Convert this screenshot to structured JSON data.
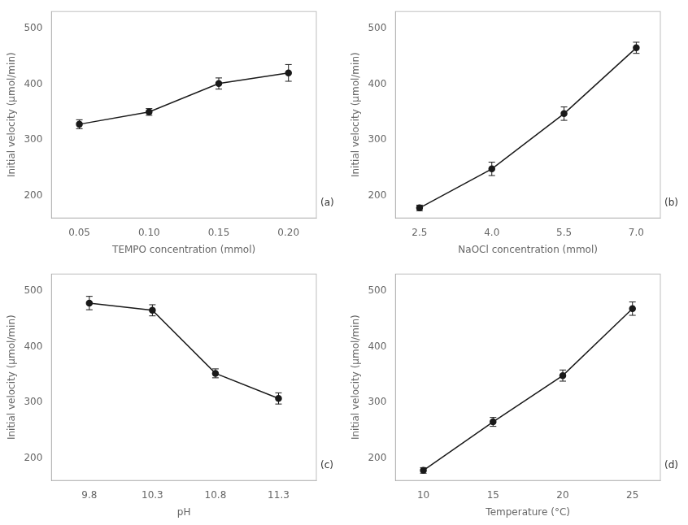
{
  "chart_data": [
    {
      "type": "line",
      "annotation": "(a)",
      "xlabel": "TEMPO concentration (mmol)",
      "ylabel": "Initial velocity (μmol/min)",
      "x": [
        0.05,
        0.1,
        0.15,
        0.2
      ],
      "values": [
        328,
        350,
        401,
        420
      ],
      "yerr": [
        8,
        6,
        10,
        15
      ],
      "xlim": [
        0.03,
        0.22
      ],
      "ylim": [
        160,
        530
      ],
      "xticks": [
        0.05,
        {
          "value": 0.1,
          "label": "0.10"
        },
        0.15,
        {
          "value": 0.2,
          "label": "0.20"
        }
      ],
      "yticks": [
        200,
        300,
        400,
        500
      ],
      "color": "#1a1a1a",
      "marker": "circle",
      "line_style": "solid",
      "grid": false
    },
    {
      "type": "line",
      "annotation": "(b)",
      "xlabel": "NaOCl concentration (mmol)",
      "ylabel": "Initial velocity (μmol/min)",
      "x": [
        2.5,
        4.0,
        5.5,
        7.0
      ],
      "values": [
        178,
        248,
        347,
        465
      ],
      "yerr": [
        5,
        12,
        12,
        10
      ],
      "xlim": [
        2.0,
        7.5
      ],
      "ylim": [
        160,
        530
      ],
      "xticks": [
        2.5,
        {
          "value": 4,
          "label": "4.0"
        },
        5.5,
        {
          "value": 7,
          "label": "7.0"
        }
      ],
      "yticks": [
        200,
        300,
        400,
        500
      ],
      "color": "#1a1a1a",
      "marker": "circle",
      "line_style": "solid",
      "grid": false
    },
    {
      "type": "line",
      "annotation": "(c)",
      "xlabel": "pH",
      "ylabel": "Initial velocity (μmol/min)",
      "x": [
        9.8,
        10.3,
        10.8,
        11.3
      ],
      "values": [
        478,
        465,
        352,
        307
      ],
      "yerr": [
        12,
        10,
        8,
        10
      ],
      "xlim": [
        9.5,
        11.6
      ],
      "ylim": [
        160,
        530
      ],
      "xticks": [
        9.8,
        10.3,
        10.8,
        11.3
      ],
      "yticks": [
        200,
        300,
        400,
        500
      ],
      "color": "#1a1a1a",
      "marker": "circle",
      "line_style": "solid",
      "grid": false
    },
    {
      "type": "line",
      "annotation": "(d)",
      "xlabel": "Temperature (°C)",
      "ylabel": "Initial velocity (μmol/min)",
      "x": [
        10,
        15,
        20,
        25
      ],
      "values": [
        178,
        265,
        348,
        468
      ],
      "yerr": [
        5,
        8,
        10,
        12
      ],
      "xlim": [
        8,
        27
      ],
      "ylim": [
        160,
        530
      ],
      "xticks": [
        10,
        15,
        20,
        25
      ],
      "yticks": [
        200,
        300,
        400,
        500
      ],
      "color": "#1a1a1a",
      "marker": "circle",
      "line_style": "solid",
      "grid": false
    }
  ]
}
